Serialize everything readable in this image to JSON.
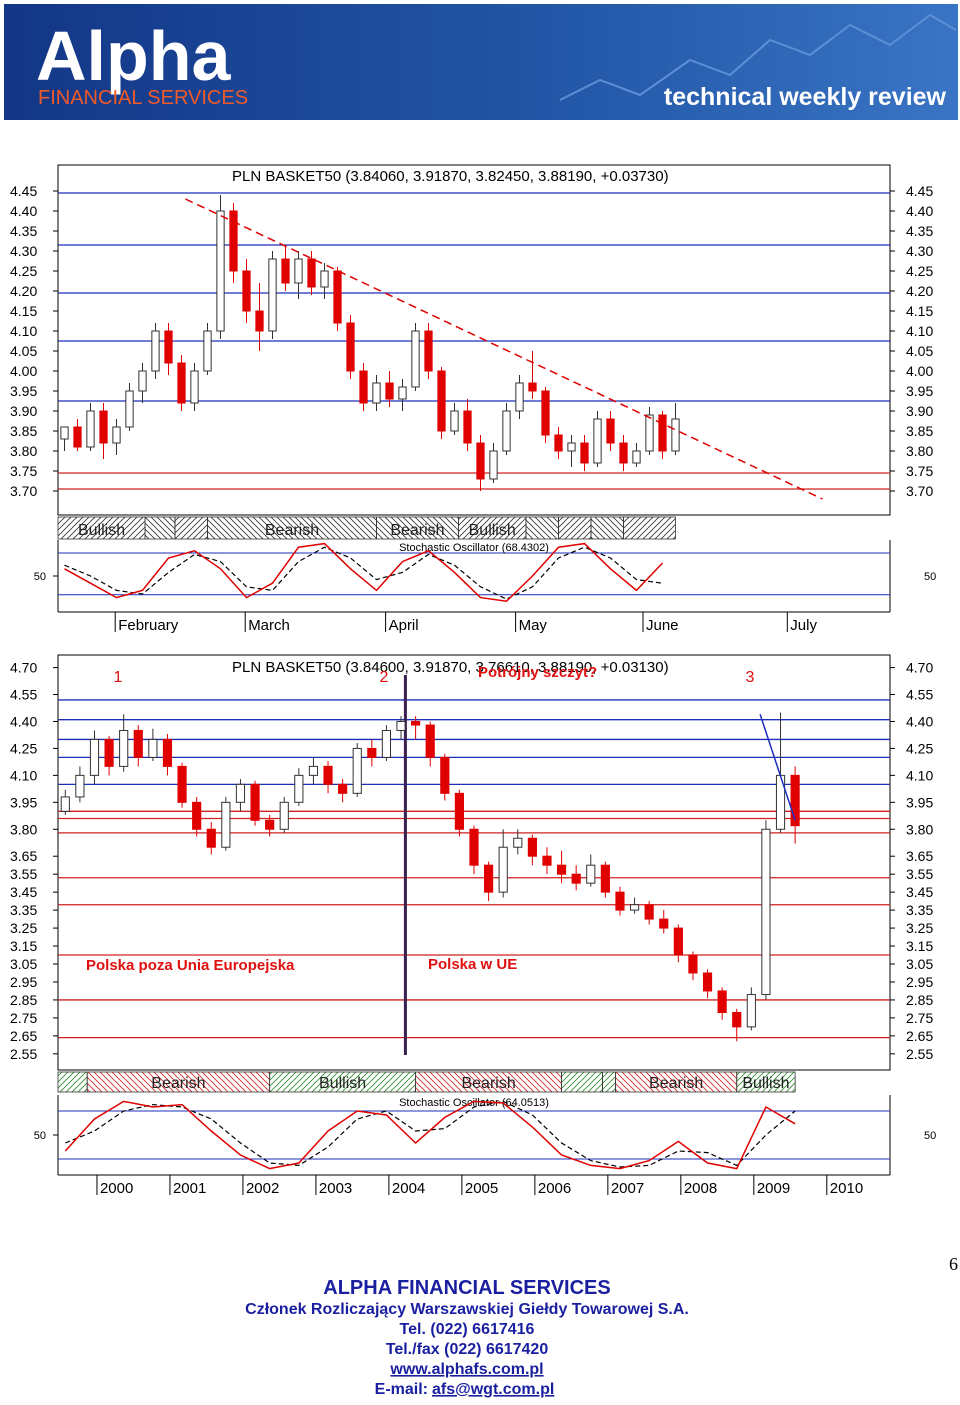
{
  "header": {
    "logo": "Alpha",
    "logo_sub": "FINANCIAL SERVICES",
    "tagline": "technical weekly review"
  },
  "chart_data": [
    {
      "type": "candlestick",
      "title": "PLN BASKET50 (3.84060, 3.91870, 3.82450, 3.88190, +0.03730)",
      "ylim": [
        3.64,
        4.515
      ],
      "yticks": [
        4.45,
        {
          "value": 4.4,
          "label": "4.40"
        },
        4.35,
        {
          "value": 4.3,
          "label": "4.30"
        },
        4.25,
        {
          "value": 4.2,
          "label": "4.20"
        },
        4.15,
        {
          "value": 4.1,
          "label": "4.10"
        },
        4.05,
        {
          "value": 4.0,
          "label": "4.00"
        },
        3.95,
        {
          "value": 3.9,
          "label": "3.90"
        },
        3.85,
        {
          "value": 3.8,
          "label": "3.80"
        },
        3.75,
        {
          "value": 3.7,
          "label": "3.70"
        }
      ],
      "xlim": [
        0,
        64
      ],
      "xticks": [
        {
          "value": 4.4,
          "label": "February"
        },
        {
          "value": 14.4,
          "label": "March"
        },
        {
          "value": 25.2,
          "label": "April"
        },
        {
          "value": 35.2,
          "label": "May"
        },
        {
          "value": 45.0,
          "label": "June"
        },
        {
          "value": 56.1,
          "label": "July"
        }
      ],
      "up_color": "#ffffff",
      "up_stroke": "#2a7a2a",
      "down_color": "#e00000",
      "candles": [
        [
          3.83,
          3.86,
          3.8,
          3.86
        ],
        [
          3.86,
          3.88,
          3.8,
          3.81
        ],
        [
          3.81,
          3.92,
          3.8,
          3.9
        ],
        [
          3.9,
          3.92,
          3.78,
          3.82
        ],
        [
          3.82,
          3.88,
          3.79,
          3.86
        ],
        [
          3.86,
          3.97,
          3.85,
          3.95
        ],
        [
          3.95,
          4.02,
          3.92,
          4.0
        ],
        [
          4.0,
          4.12,
          3.98,
          4.1
        ],
        [
          4.1,
          4.12,
          3.99,
          4.02
        ],
        [
          4.02,
          4.04,
          3.9,
          3.92
        ],
        [
          3.92,
          4.02,
          3.9,
          4.0
        ],
        [
          4.0,
          4.12,
          3.99,
          4.1
        ],
        [
          4.1,
          4.44,
          4.08,
          4.4
        ],
        [
          4.4,
          4.42,
          4.22,
          4.25
        ],
        [
          4.25,
          4.28,
          4.12,
          4.15
        ],
        [
          4.15,
          4.22,
          4.05,
          4.1
        ],
        [
          4.1,
          4.3,
          4.08,
          4.28
        ],
        [
          4.28,
          4.31,
          4.2,
          4.22
        ],
        [
          4.22,
          4.3,
          4.18,
          4.28
        ],
        [
          4.28,
          4.3,
          4.19,
          4.21
        ],
        [
          4.21,
          4.27,
          4.18,
          4.25
        ],
        [
          4.25,
          4.26,
          4.1,
          4.12
        ],
        [
          4.12,
          4.14,
          3.98,
          4.0
        ],
        [
          4.0,
          4.02,
          3.9,
          3.92
        ],
        [
          3.92,
          3.99,
          3.9,
          3.97
        ],
        [
          3.97,
          4.0,
          3.91,
          3.93
        ],
        [
          3.93,
          3.98,
          3.9,
          3.96
        ],
        [
          3.96,
          4.12,
          3.95,
          4.1
        ],
        [
          4.1,
          4.12,
          3.98,
          4.0
        ],
        [
          4.0,
          4.01,
          3.83,
          3.85
        ],
        [
          3.85,
          3.92,
          3.84,
          3.9
        ],
        [
          3.9,
          3.93,
          3.8,
          3.82
        ],
        [
          3.82,
          3.84,
          3.7,
          3.73
        ],
        [
          3.73,
          3.82,
          3.72,
          3.8
        ],
        [
          3.8,
          3.92,
          3.79,
          3.9
        ],
        [
          3.9,
          3.99,
          3.88,
          3.97
        ],
        [
          3.97,
          4.05,
          3.93,
          3.95
        ],
        [
          3.95,
          3.96,
          3.82,
          3.84
        ],
        [
          3.84,
          3.86,
          3.78,
          3.8
        ],
        [
          3.8,
          3.84,
          3.76,
          3.82
        ],
        [
          3.82,
          3.84,
          3.75,
          3.77
        ],
        [
          3.77,
          3.9,
          3.76,
          3.88
        ],
        [
          3.88,
          3.9,
          3.8,
          3.82
        ],
        [
          3.82,
          3.84,
          3.75,
          3.77
        ],
        [
          3.77,
          3.82,
          3.76,
          3.8
        ],
        [
          3.8,
          3.91,
          3.79,
          3.89
        ],
        [
          3.89,
          3.9,
          3.78,
          3.8
        ],
        [
          3.8,
          3.92,
          3.79,
          3.88
        ]
      ],
      "levels": [
        {
          "value": 4.445,
          "color": "#1c2fb8"
        },
        {
          "value": 4.315,
          "color": "#1c2fb8"
        },
        {
          "value": 4.195,
          "color": "#1c2fb8"
        },
        {
          "value": 4.075,
          "color": "#1c2fb8"
        },
        {
          "value": 3.925,
          "color": "#1c2fb8"
        },
        {
          "value": 3.745,
          "color": "#d02020"
        },
        {
          "value": 3.705,
          "color": "#d02020"
        }
      ],
      "trendline": {
        "x": [
          9.8,
          58.8
        ],
        "y": [
          4.43,
          3.68
        ],
        "color": "#e00000",
        "dashed": true
      },
      "sentiment_colors": {
        "bullish": "#333333",
        "bearish": "#333333"
      },
      "sentiment": [
        {
          "range": [
            0,
            6.7
          ],
          "kind": "bullish",
          "label": "Bullish"
        },
        {
          "range": [
            6.7,
            9
          ],
          "kind": "bearish"
        },
        {
          "range": [
            9,
            11.5
          ],
          "kind": "bullish"
        },
        {
          "range": [
            11.5,
            24.5
          ],
          "kind": "bearish",
          "label": "Bearish"
        },
        {
          "range": [
            24.5,
            30.8
          ],
          "kind": "bearish",
          "label": "Bearish"
        },
        {
          "range": [
            30.8,
            36
          ],
          "kind": "bullish",
          "label": "Bullish"
        },
        {
          "range": [
            36,
            38.5
          ],
          "kind": "bearish"
        },
        {
          "range": [
            38.5,
            41
          ],
          "kind": "bullish"
        },
        {
          "range": [
            41,
            43.5
          ],
          "kind": "bearish"
        },
        {
          "range": [
            43.5,
            47.5
          ],
          "kind": "bullish"
        }
      ],
      "oscillator": {
        "title": "Stochastic Oscillator (68.4302)",
        "ylim": [
          0,
          100
        ],
        "yticks": [
          50
        ],
        "levels": [
          82,
          24
        ],
        "x": [
          0,
          2,
          4,
          6,
          8,
          10,
          12,
          14,
          16,
          18,
          20,
          22,
          24,
          26,
          28,
          30,
          32,
          34,
          36,
          38,
          40,
          42,
          44,
          46
        ],
        "k": [
          60,
          40,
          20,
          30,
          75,
          85,
          60,
          20,
          40,
          90,
          95,
          60,
          30,
          70,
          85,
          55,
          20,
          15,
          50,
          90,
          95,
          60,
          30,
          68
        ],
        "d": [
          65,
          50,
          30,
          25,
          55,
          80,
          70,
          35,
          30,
          70,
          90,
          75,
          45,
          55,
          80,
          65,
          35,
          18,
          35,
          75,
          90,
          75,
          45,
          40
        ],
        "k_color": "#e00000",
        "d_color": "#000000"
      }
    },
    {
      "type": "candlestick",
      "title": "PLN BASKET50 (3.84600, 3.91870, 3.76610, 3.88190, +0.03130)",
      "ylim": [
        2.46,
        4.77
      ],
      "yticks": [
        {
          "value": 4.7,
          "label": "4.70"
        },
        4.55,
        {
          "value": 4.4,
          "label": "4.40"
        },
        4.25,
        {
          "value": 4.1,
          "label": "4.10"
        },
        3.95,
        {
          "value": 3.8,
          "label": "3.80"
        },
        3.65,
        3.55,
        3.45,
        3.35,
        3.25,
        3.15,
        3.05,
        2.95,
        2.85,
        2.75,
        2.65,
        2.55
      ],
      "xlim": [
        0,
        57
      ],
      "xticks": [
        {
          "value": 2.67,
          "label": "2000"
        },
        {
          "value": 7.67,
          "label": "2001"
        },
        {
          "value": 12.67,
          "label": "2002"
        },
        {
          "value": 17.67,
          "label": "2003"
        },
        {
          "value": 22.67,
          "label": "2004"
        },
        {
          "value": 27.67,
          "label": "2005"
        },
        {
          "value": 32.67,
          "label": "2006"
        },
        {
          "value": 37.67,
          "label": "2007"
        },
        {
          "value": 42.67,
          "label": "2008"
        },
        {
          "value": 47.67,
          "label": "2009"
        },
        {
          "value": 52.67,
          "label": "2010"
        }
      ],
      "up_color": "#ffffff",
      "up_stroke": "#2a7a2a",
      "down_color": "#e00000",
      "candles": [
        [
          3.9,
          4.02,
          3.88,
          3.98
        ],
        [
          3.98,
          4.15,
          3.95,
          4.1
        ],
        [
          4.1,
          4.35,
          4.05,
          4.3
        ],
        [
          4.3,
          4.32,
          4.1,
          4.15
        ],
        [
          4.15,
          4.44,
          4.12,
          4.35
        ],
        [
          4.35,
          4.38,
          4.15,
          4.2
        ],
        [
          4.2,
          4.36,
          4.18,
          4.3
        ],
        [
          4.3,
          4.33,
          4.1,
          4.15
        ],
        [
          4.15,
          4.17,
          3.92,
          3.95
        ],
        [
          3.95,
          3.98,
          3.76,
          3.8
        ],
        [
          3.8,
          3.84,
          3.66,
          3.7
        ],
        [
          3.7,
          3.98,
          3.68,
          3.95
        ],
        [
          3.95,
          4.08,
          3.9,
          4.05
        ],
        [
          4.05,
          4.07,
          3.82,
          3.85
        ],
        [
          3.85,
          3.88,
          3.76,
          3.8
        ],
        [
          3.8,
          3.98,
          3.78,
          3.95
        ],
        [
          3.95,
          4.14,
          3.93,
          4.1
        ],
        [
          4.1,
          4.2,
          4.05,
          4.15
        ],
        [
          4.15,
          4.18,
          4.0,
          4.05
        ],
        [
          4.05,
          4.08,
          3.95,
          4.0
        ],
        [
          4.0,
          4.28,
          3.98,
          4.25
        ],
        [
          4.25,
          4.3,
          4.15,
          4.2
        ],
        [
          4.2,
          4.38,
          4.18,
          4.35
        ],
        [
          4.35,
          4.43,
          4.3,
          4.4
        ],
        [
          4.4,
          4.43,
          4.3,
          4.38
        ],
        [
          4.38,
          4.4,
          4.15,
          4.2
        ],
        [
          4.2,
          4.22,
          3.96,
          4.0
        ],
        [
          4.0,
          4.02,
          3.76,
          3.8
        ],
        [
          3.8,
          3.82,
          3.55,
          3.6
        ],
        [
          3.6,
          3.62,
          3.4,
          3.45
        ],
        [
          3.45,
          3.8,
          3.42,
          3.7
        ],
        [
          3.7,
          3.8,
          3.66,
          3.75
        ],
        [
          3.75,
          3.77,
          3.6,
          3.65
        ],
        [
          3.65,
          3.7,
          3.55,
          3.6
        ],
        [
          3.6,
          3.68,
          3.5,
          3.55
        ],
        [
          3.55,
          3.6,
          3.46,
          3.5
        ],
        [
          3.5,
          3.66,
          3.48,
          3.6
        ],
        [
          3.6,
          3.62,
          3.42,
          3.45
        ],
        [
          3.45,
          3.48,
          3.32,
          3.35
        ],
        [
          3.35,
          3.42,
          3.33,
          3.38
        ],
        [
          3.38,
          3.4,
          3.27,
          3.3
        ],
        [
          3.3,
          3.35,
          3.22,
          3.25
        ],
        [
          3.25,
          3.27,
          3.06,
          3.1
        ],
        [
          3.1,
          3.12,
          2.96,
          3.0
        ],
        [
          3.0,
          3.02,
          2.86,
          2.9
        ],
        [
          2.9,
          2.92,
          2.74,
          2.78
        ],
        [
          2.78,
          2.8,
          2.62,
          2.7
        ],
        [
          2.7,
          2.92,
          2.68,
          2.88
        ],
        [
          2.88,
          3.85,
          2.85,
          3.8
        ],
        [
          3.8,
          4.45,
          3.78,
          4.1
        ],
        [
          4.1,
          4.15,
          3.72,
          3.82
        ]
      ],
      "levels": [
        {
          "value": 4.52,
          "color": "#1c2fb8"
        },
        {
          "value": 4.41,
          "color": "#1c2fb8"
        },
        {
          "value": 4.3,
          "color": "#1c2fb8"
        },
        {
          "value": 4.2,
          "color": "#1c2fb8"
        },
        {
          "value": 4.05,
          "color": "#1c2fb8"
        },
        {
          "value": 3.9,
          "color": "#d02020"
        },
        {
          "value": 3.86,
          "color": "#d02020"
        },
        {
          "value": 3.78,
          "color": "#d02020"
        },
        {
          "value": 3.53,
          "color": "#d02020"
        },
        {
          "value": 3.38,
          "color": "#d02020"
        },
        {
          "value": 3.1,
          "color": "#d02020"
        },
        {
          "value": 2.85,
          "color": "#d02020"
        },
        {
          "value": 2.64,
          "color": "#d02020"
        }
      ],
      "trendline": {
        "x": [
          48.1,
          50.5
        ],
        "y": [
          4.44,
          3.85
        ],
        "color": "#2030c0",
        "dashed": false
      },
      "markers": [
        {
          "x": 23.8,
          "color": "#3a2050"
        }
      ],
      "annotations": [
        "1",
        "2",
        "3",
        "Potrójny szczyt?",
        "Polska poza Unia Europejska",
        "Polska w UE"
      ],
      "sentiment_colors": {
        "bullish": "#2a8a2a",
        "bearish": "#d02020"
      },
      "sentiment": [
        {
          "range": [
            0,
            2
          ],
          "kind": "bullish"
        },
        {
          "range": [
            2,
            14.5
          ],
          "kind": "bearish",
          "label": "Bearish"
        },
        {
          "range": [
            14.5,
            24.5
          ],
          "kind": "bullish",
          "label": "Bullish"
        },
        {
          "range": [
            24.5,
            34.5
          ],
          "kind": "bearish",
          "label": "Bearish"
        },
        {
          "range": [
            34.5,
            37.3
          ],
          "kind": "bullish"
        },
        {
          "range": [
            37.3,
            38.2
          ],
          "kind": "bullish"
        },
        {
          "range": [
            38.2,
            46.5
          ],
          "kind": "bearish",
          "label": "Bearish"
        },
        {
          "range": [
            46.5,
            50.5
          ],
          "kind": "bullish",
          "label": "Bullish"
        }
      ],
      "oscillator": {
        "title": "Stochastic Oscillator (64.0513)",
        "ylim": [
          0,
          100
        ],
        "yticks": [
          50
        ],
        "levels": [
          80,
          20
        ],
        "x": [
          0,
          2,
          4,
          6,
          8,
          10,
          12,
          14,
          16,
          18,
          20,
          22,
          24,
          26,
          28,
          30,
          32,
          34,
          36,
          38,
          40,
          42,
          44,
          46,
          48,
          50
        ],
        "k": [
          30,
          70,
          92,
          85,
          88,
          55,
          25,
          8,
          15,
          55,
          80,
          75,
          40,
          72,
          92,
          90,
          60,
          25,
          12,
          8,
          18,
          42,
          15,
          8,
          85,
          64
        ],
        "d": [
          40,
          55,
          80,
          88,
          85,
          70,
          40,
          15,
          12,
          35,
          70,
          80,
          55,
          58,
          85,
          92,
          75,
          40,
          18,
          10,
          12,
          30,
          28,
          12,
          50,
          80
        ],
        "k_color": "#e00000",
        "d_color": "#000000"
      }
    }
  ],
  "footer": {
    "company": "ALPHA FINANCIAL SERVICES",
    "member": "Członek Rozliczający Warszawskiej Giełdy Towarowej S.A.",
    "tel": "Tel. (022) 6617416",
    "fax": "Tel./fax (022) 6617420",
    "www": "www.alphafs.com.pl",
    "email_label": "E-mail:",
    "email": "afs@wgt.com.pl"
  },
  "page_number": "6"
}
